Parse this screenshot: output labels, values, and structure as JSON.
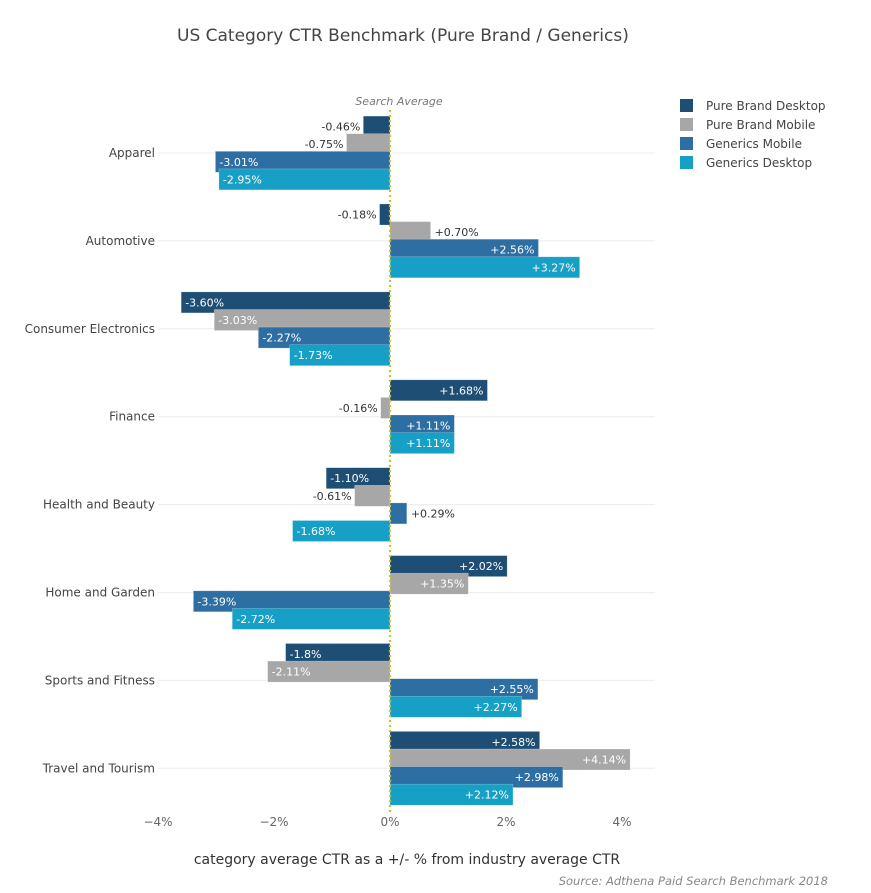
{
  "chart_data": {
    "type": "bar",
    "orientation": "horizontal",
    "title": "US Category CTR Benchmark (Pure Brand / Generics)",
    "xlabel": "category average CTR as a +/- % from industry average CTR",
    "ylabel": "",
    "source": "Source: Adthena Paid Search Benchmark 2018",
    "annotation": "Search Average",
    "xlim": [
      -4,
      4.6
    ],
    "xticks": [
      -4,
      -2,
      0,
      2,
      4
    ],
    "xtick_labels": [
      "−4%",
      "−2%",
      "0%",
      "2%",
      "4%"
    ],
    "grid": true,
    "legend_position": "top-right",
    "categories": [
      "Apparel",
      "Automotive",
      "Consumer Electronics",
      "Finance",
      "Health and Beauty",
      "Home and Garden",
      "Sports and Fitness",
      "Travel and Tourism"
    ],
    "series": [
      {
        "name": "Pure Brand Desktop",
        "color": "#1f4e75",
        "values": [
          -0.46,
          -0.18,
          -3.6,
          1.68,
          -1.1,
          2.02,
          -1.8,
          2.58
        ],
        "labels": [
          "-0.46%",
          "-0.18%",
          "-3.60%",
          "+1.68%",
          "-1.10%",
          "+2.02%",
          "-1.8%",
          "+2.58%"
        ]
      },
      {
        "name": "Pure Brand Mobile",
        "color": "#a7a7a7",
        "values": [
          -0.75,
          0.7,
          -3.03,
          -0.16,
          -0.61,
          1.35,
          -2.11,
          4.14
        ],
        "labels": [
          "-0.75%",
          "+0.70%",
          "-3.03%",
          "-0.16%",
          "-0.61%",
          "+1.35%",
          "-2.11%",
          "+4.14%"
        ]
      },
      {
        "name": "Generics Mobile",
        "color": "#2e6fa3",
        "values": [
          -3.01,
          2.56,
          -2.27,
          1.11,
          0.29,
          -3.39,
          2.55,
          2.98
        ],
        "labels": [
          "-3.01%",
          "+2.56%",
          "-2.27%",
          "+1.11%",
          "+0.29%",
          "-3.39%",
          "+2.55%",
          "+2.98%"
        ]
      },
      {
        "name": "Generics Desktop",
        "color": "#17a0c6",
        "values": [
          -2.95,
          3.27,
          -1.73,
          1.11,
          -1.68,
          -2.72,
          2.27,
          2.12
        ],
        "labels": [
          "-2.95%",
          "+3.27%",
          "-1.73%",
          "+1.11%",
          "-1.68%",
          "-2.72%",
          "+2.27%",
          "+2.12%"
        ]
      }
    ],
    "reference_line": {
      "x": 0,
      "color": "#c8c42a",
      "style": "dotted"
    }
  }
}
